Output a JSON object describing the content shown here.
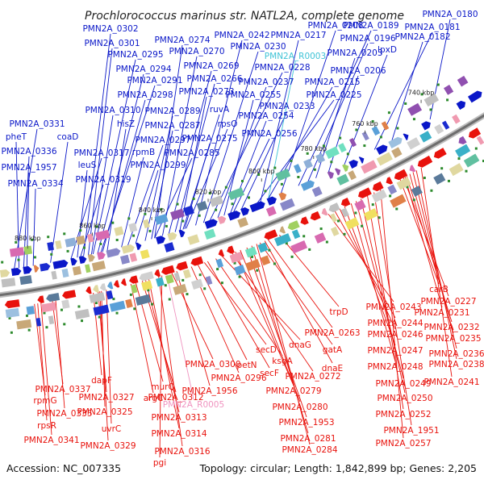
{
  "title": "Prochlorococcus marinus str. NATL2A, complete genome",
  "footer": {
    "accession": "Accession: NC_007335",
    "summary": "Topology: circular; Length: 1,842,899 bp; Genes: 2,205"
  },
  "ticks": [
    "880 kbp",
    "860 kbp",
    "840 kbp",
    "820 kbp",
    "800 kbp",
    "780 kbp",
    "760 kbp",
    "740 kbp"
  ],
  "colors": {
    "forward": "#0a17c8",
    "reverse": "#e8120c",
    "rna": "#3fc3d6",
    "rna_rev": "#f094c0",
    "backbone": "#7f7f7f",
    "dots": "#2c8a2c"
  },
  "forward_labels": [
    "PMN2A_0302",
    "PMN2A_0301",
    "PMN2A_0295",
    "PMN2A_0294",
    "PMN2A_0291",
    "PMN2A_0298",
    "PMN2A_0310",
    "hisZ",
    "PMN2A_0331",
    "pheT",
    "coaD",
    "PMN2A_0336",
    "PMN2A_1957",
    "PMN2A_0334",
    "PMN2A_0317",
    "leuS",
    "PMN2A_0319",
    "rpmB",
    "PMN2A_0297",
    "PMN2A_0299",
    "PMN2A_0289",
    "PMN2A_0287",
    "PMN2A_0285",
    "PMN2A_0274",
    "PMN2A_0270",
    "PMN2A_0269",
    "PMN2A_0266",
    "PMN2A_0273",
    "ruvA",
    "rpsO",
    "PMN2A_0275",
    "PMN2A_0242",
    "PMN2A_0230",
    "PMN2A_0228",
    "PMN2A_0237",
    "PMN2A_0255",
    "PMN2A_0254",
    "PMN2A_0256",
    "PMN2A_0233",
    "PMN2A_0225",
    "PMN2A_0215",
    "PMN2A_0217",
    "PMN2A_0208",
    "PMN2A_0189",
    "PMN2A_0196",
    "PMN2A_0203",
    "PMN2A_0206",
    "lpxD",
    "PMN2A_0181",
    "PMN2A_0182",
    "PMN2A_0180",
    "PMN2A_R0003"
  ],
  "reverse_labels": [
    "PMN2A_0337",
    "rpmG",
    "PMN2A_0335",
    "rpsR",
    "PMN2A_0341",
    "dapF",
    "PMN2A_0327",
    "PMN2A_0325",
    "uvrC",
    "PMN2A_0329",
    "PMN2A_0312",
    "murQ",
    "argC",
    "PMN2A_0313",
    "PMN2A_0314",
    "PMN2A_0316",
    "pgi",
    "PMN2A_0300",
    "PMN2A_1956",
    "PMN2A_0296",
    "petN",
    "secD",
    "secF",
    "ksgA",
    "dnaG",
    "PMN2A_0272",
    "PMN2A_0279",
    "PMN2A_0280",
    "PMN2A_1953",
    "PMN2A_0281",
    "PMN2A_0284",
    "gatA",
    "dnaE",
    "PMN2A_0263",
    "trpD",
    "PMN2A_0243",
    "PMN2A_0244",
    "PMN2A_0246",
    "PMN2A_0247",
    "PMN2A_0248",
    "PMN2A_0249",
    "PMN2A_0250",
    "PMN2A_0252",
    "PMN2A_1951",
    "PMN2A_0257",
    "carB",
    "PMN2A_0227",
    "PMN2A_0231",
    "PMN2A_0232",
    "PMN2A_0235",
    "PMN2A_0236",
    "PMN2A_0238",
    "PMN2A_0241",
    "PMN2A_R0005"
  ]
}
